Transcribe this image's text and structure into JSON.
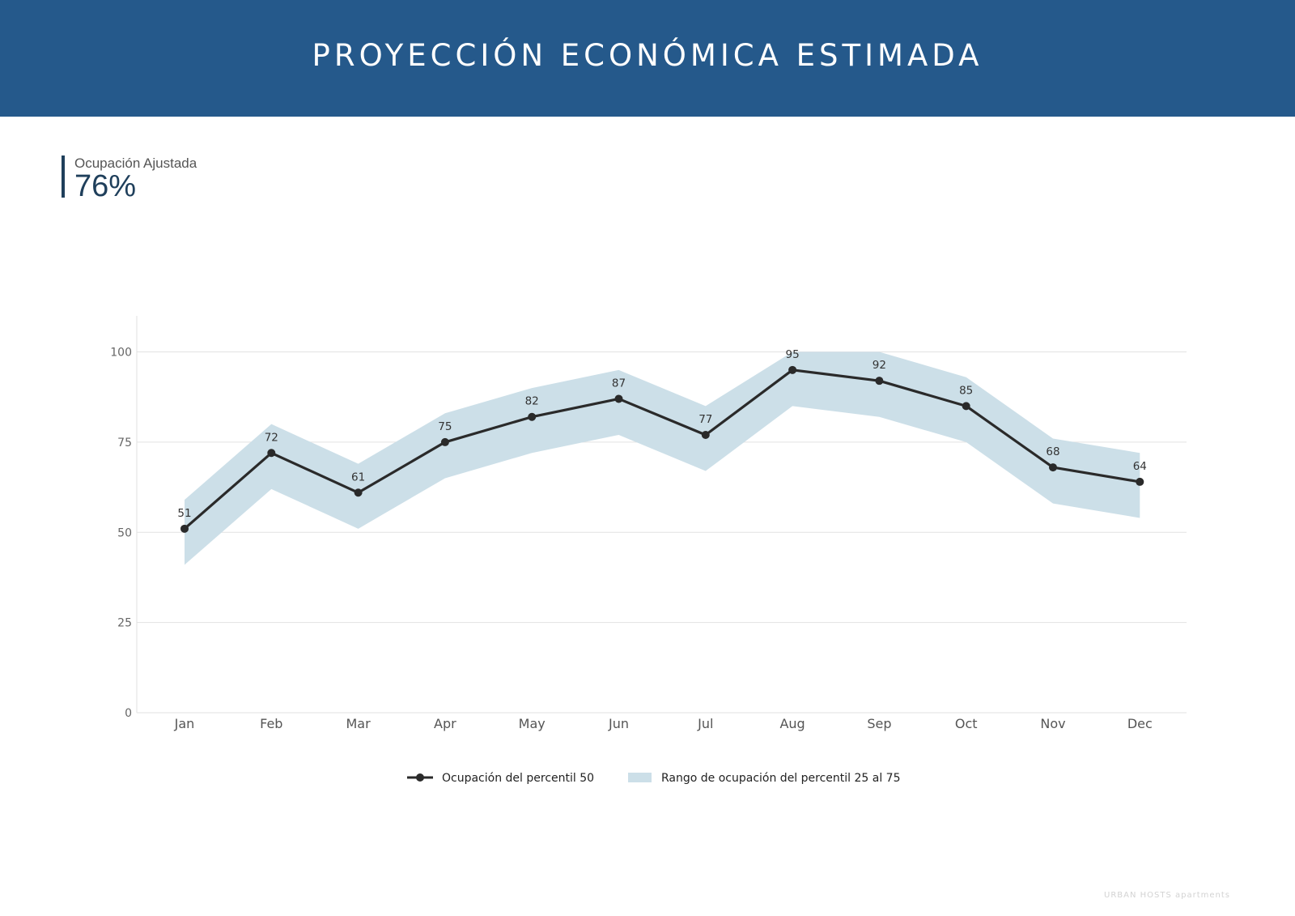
{
  "header": {
    "title": "PROYECCIÓN ECONÓMICA ESTIMADA"
  },
  "kpi": {
    "label": "Ocupación Ajustada",
    "value": "76%"
  },
  "colors": {
    "header_bg": "#25598b",
    "line": "#2a2a2a",
    "band": "#ccdfe8",
    "kpi_bar": "#1f3f5b"
  },
  "chart_data": {
    "type": "line",
    "categories": [
      "Jan",
      "Feb",
      "Mar",
      "Apr",
      "May",
      "Jun",
      "Jul",
      "Aug",
      "Sep",
      "Oct",
      "Nov",
      "Dec"
    ],
    "series": [
      {
        "name": "Ocupación del percentil 50",
        "values": [
          51,
          72,
          61,
          75,
          82,
          87,
          77,
          95,
          92,
          85,
          68,
          64
        ]
      }
    ],
    "band": {
      "name": "Rango de ocupación del percentil 25 al 75",
      "lower": [
        41,
        62,
        51,
        65,
        72,
        77,
        67,
        85,
        82,
        75,
        58,
        54
      ],
      "upper": [
        59,
        80,
        69,
        83,
        90,
        95,
        85,
        100,
        100,
        93,
        76,
        72
      ]
    },
    "yticks": [
      0,
      25,
      50,
      75,
      100
    ],
    "ylim": [
      0,
      110
    ],
    "grid": true,
    "legend": "bottom-center"
  },
  "footer": {
    "text": "URBAN HOSTS apartments"
  }
}
